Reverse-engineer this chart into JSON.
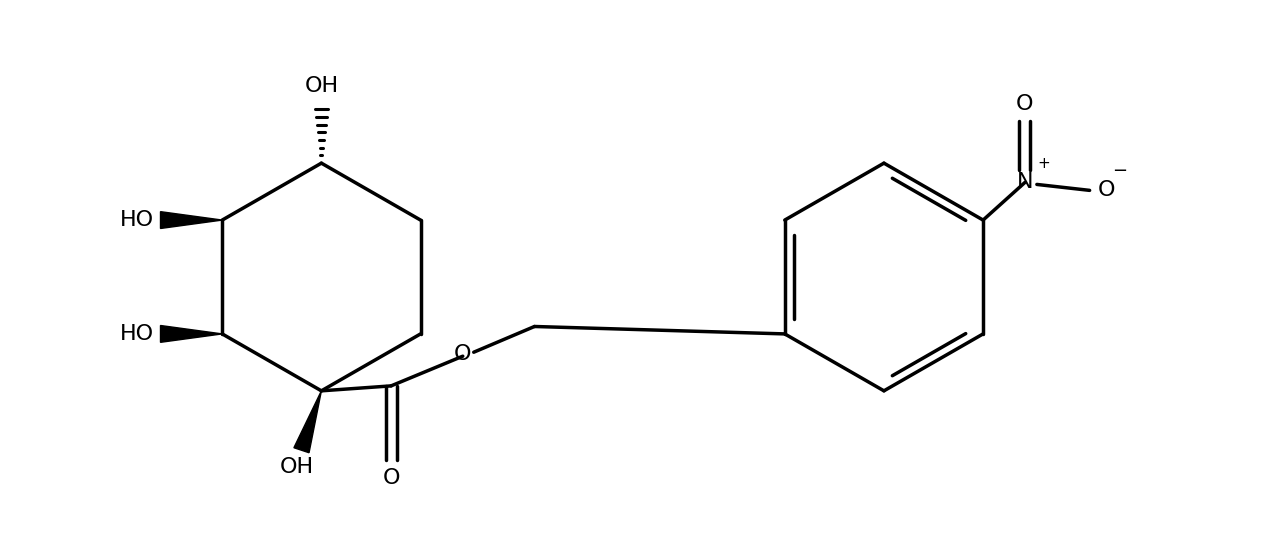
{
  "background_color": "#ffffff",
  "line_color": "#000000",
  "line_width": 2.5,
  "figsize": [
    12.8,
    5.52
  ],
  "dpi": 100,
  "xlim": [
    0,
    12.8
  ],
  "ylim": [
    0,
    5.52
  ]
}
